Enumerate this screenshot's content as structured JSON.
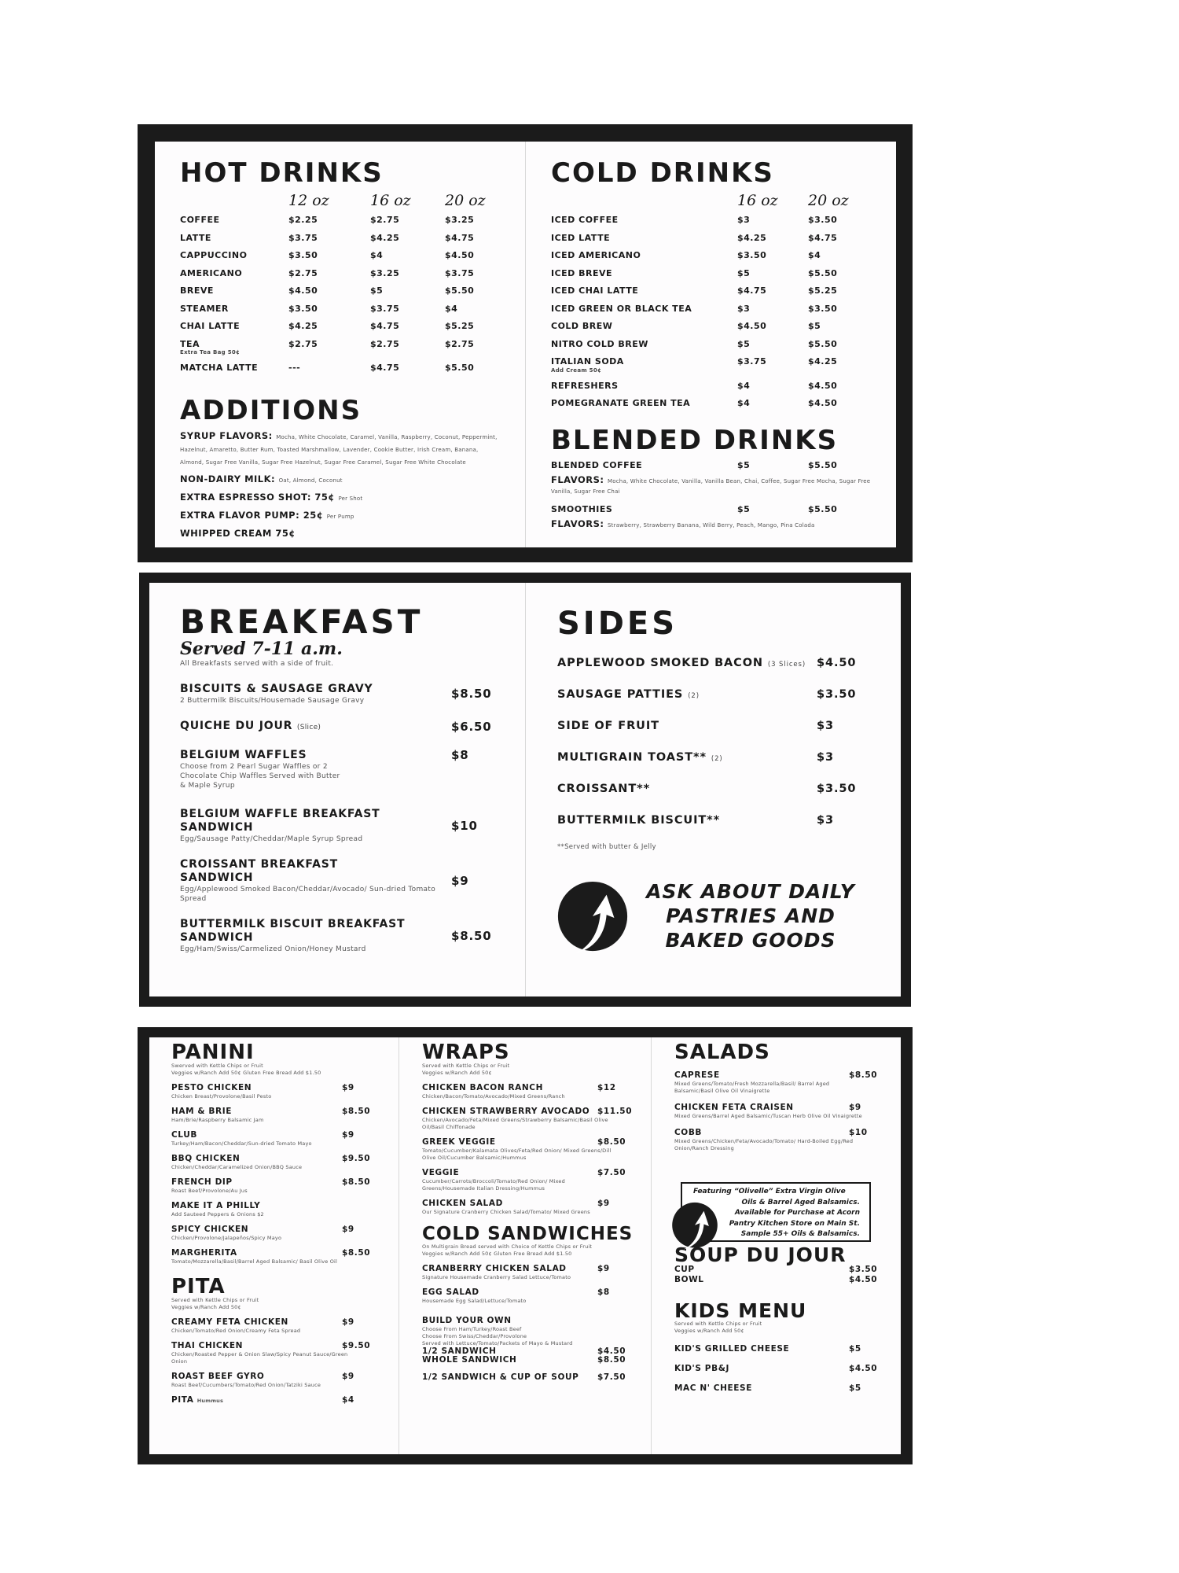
{
  "hot_drinks": {
    "title": "HOT DRINKS",
    "sizes": [
      "12 oz",
      "16 oz",
      "20 oz"
    ],
    "items": [
      {
        "name": "COFFEE",
        "prices": [
          "$2.25",
          "$2.75",
          "$3.25"
        ]
      },
      {
        "name": "LATTE",
        "prices": [
          "$3.75",
          "$4.25",
          "$4.75"
        ]
      },
      {
        "name": "CAPPUCCINO",
        "prices": [
          "$3.50",
          "$4",
          "$4.50"
        ]
      },
      {
        "name": "AMERICANO",
        "prices": [
          "$2.75",
          "$3.25",
          "$3.75"
        ]
      },
      {
        "name": "BREVE",
        "prices": [
          "$4.50",
          "$5",
          "$5.50"
        ]
      },
      {
        "name": "STEAMER",
        "prices": [
          "$3.50",
          "$3.75",
          "$4"
        ]
      },
      {
        "name": "CHAI LATTE",
        "prices": [
          "$4.25",
          "$4.75",
          "$5.25"
        ]
      },
      {
        "name": "TEA",
        "note": "Extra Tea Bag 50¢",
        "prices": [
          "$2.75",
          "$2.75",
          "$2.75"
        ]
      },
      {
        "name": "MATCHA LATTE",
        "prices": [
          "---",
          "$4.75",
          "$5.50"
        ]
      }
    ]
  },
  "additions": {
    "title": "ADDITIONS",
    "items": [
      {
        "label": "SYRUP FLAVORS:",
        "detail": "Mocha, White Chocolate, Caramel, Vanilla, Raspberry, Coconut, Peppermint, Hazelnut, Amaretto, Butter Rum, Toasted Marshmallow, Lavender, Cookie Butter, Irish Cream, Banana, Almond, Sugar Free Vanilla, Sugar Free Hazelnut, Sugar Free Caramel, Sugar Free White Chocolate"
      },
      {
        "label": "NON-DAIRY MILK:",
        "detail": "Oat, Almond, Coconut"
      },
      {
        "label": "EXTRA ESPRESSO SHOT: 75¢",
        "detail": "Per Shot"
      },
      {
        "label": "EXTRA FLAVOR PUMP: 25¢",
        "detail": "Per Pump"
      },
      {
        "label": "WHIPPED CREAM 75¢"
      }
    ]
  },
  "cold_drinks": {
    "title": "COLD DRINKS",
    "sizes": [
      "16 oz",
      "20 oz"
    ],
    "items": [
      {
        "name": "ICED COFFEE",
        "prices": [
          "$3",
          "$3.50"
        ]
      },
      {
        "name": "ICED LATTE",
        "prices": [
          "$4.25",
          "$4.75"
        ]
      },
      {
        "name": "ICED AMERICANO",
        "prices": [
          "$3.50",
          "$4"
        ]
      },
      {
        "name": "ICED BREVE",
        "prices": [
          "$5",
          "$5.50"
        ]
      },
      {
        "name": "ICED CHAI LATTE",
        "prices": [
          "$4.75",
          "$5.25"
        ]
      },
      {
        "name": "ICED GREEN OR BLACK TEA",
        "prices": [
          "$3",
          "$3.50"
        ]
      },
      {
        "name": "COLD BREW",
        "prices": [
          "$4.50",
          "$5"
        ]
      },
      {
        "name": "NITRO COLD BREW",
        "prices": [
          "$5",
          "$5.50"
        ]
      },
      {
        "name": "ITALIAN SODA",
        "note": "Add Cream 50¢",
        "prices": [
          "$3.75",
          "$4.25"
        ]
      },
      {
        "name": "REFRESHERS",
        "prices": [
          "$4",
          "$4.50"
        ]
      },
      {
        "name": "POMEGRANATE GREEN TEA",
        "prices": [
          "$4",
          "$4.50"
        ]
      }
    ]
  },
  "blended_drinks": {
    "title": "BLENDED DRINKS",
    "items": [
      {
        "name": "BLENDED COFFEE",
        "prices": [
          "$5",
          "$5.50"
        ],
        "flavors_label": "FLAVORS:",
        "flavors": "Mocha, White Chocolate, Vanilla, Vanilla Bean, Chai, Coffee, Sugar Free Mocha, Sugar Free Vanilla, Sugar Free Chai"
      },
      {
        "name": "SMOOTHIES",
        "prices": [
          "$5",
          "$5.50"
        ],
        "flavors_label": "FLAVORS:",
        "flavors": "Strawberry, Strawberry Banana, Wild Berry, Peach, Mango, Pina Colada"
      }
    ]
  },
  "breakfast": {
    "title": "BREAKFAST",
    "hours": "Served 7-11 a.m.",
    "note": "All Breakfasts served with a side of fruit.",
    "items": [
      {
        "name": "BISCUITS & SAUSAGE GRAVY",
        "desc": "2 Buttermilk Biscuits/Housemade Sausage Gravy",
        "price": "$8.50"
      },
      {
        "name": "QUICHE DU JOUR",
        "qualifier": "(Slice)",
        "price": "$6.50"
      },
      {
        "name": "BELGIUM WAFFLES",
        "desc": "Choose from 2 Pearl Sugar Waffles or 2 Chocolate Chip Waffles Served with Butter & Maple Syrup",
        "price": "$8",
        "price_top": true
      },
      {
        "name": "BELGIUM WAFFLE BREAKFAST SANDWICH",
        "desc": "Egg/Sausage Patty/Cheddar/Maple Syrup Spread",
        "price": "$10"
      },
      {
        "name": "CROISSANT BREAKFAST SANDWICH",
        "desc": "Egg/Applewood Smoked Bacon/Cheddar/Avocado/ Sun-dried Tomato Spread",
        "price": "$9"
      },
      {
        "name": "BUTTERMILK BISCUIT BREAKFAST SANDWICH",
        "desc": "Egg/Ham/Swiss/Carmelized Onion/Honey Mustard",
        "price": "$8.50"
      }
    ]
  },
  "sides": {
    "title": "SIDES",
    "items": [
      {
        "name": "APPLEWOOD SMOKED BACON",
        "qualifier": "(3 Slices)",
        "price": "$4.50"
      },
      {
        "name": "SAUSAGE PATTIES",
        "qualifier": "(2)",
        "price": "$3.50"
      },
      {
        "name": "SIDE OF FRUIT",
        "price": "$3"
      },
      {
        "name": "MULTIGRAIN TOAST**",
        "qualifier": "(2)",
        "price": "$3"
      },
      {
        "name": "CROISSANT**",
        "price": "$3.50"
      },
      {
        "name": "BUTTERMILK BISCUIT**",
        "price": "$3"
      }
    ],
    "footnote": "**Served with butter & Jelly",
    "promo_lines": [
      "ASK ABOUT DAILY",
      "PASTRIES AND",
      "BAKED GOODS"
    ]
  },
  "panini": {
    "title": "PANINI",
    "subtitle": [
      "Swerved with Kettle Chips or Fruit",
      "Veggies w/Ranch Add 50¢   Gluten Free Bread Add $1.50"
    ],
    "items": [
      {
        "name": "PESTO CHICKEN",
        "desc": "Chicken Breast/Provolone/Basil Pesto",
        "price": "$9"
      },
      {
        "name": "HAM & BRIE",
        "desc": "Ham/Brie/Raspberry Balsamic Jam",
        "price": "$8.50"
      },
      {
        "name": "CLUB",
        "desc": "Turkey/Ham/Bacon/Cheddar/Sun-dried Tomato Mayo",
        "price": "$9"
      },
      {
        "name": "BBQ CHICKEN",
        "desc": "Chicken/Cheddar/Caramelized Onion/BBQ Sauce",
        "price": "$9.50"
      },
      {
        "name": "FRENCH DIP",
        "desc": "Roast Beef/Provolone/Au Jus",
        "price": "$8.50"
      },
      {
        "name": "MAKE IT A PHILLY",
        "desc": "Add Sauteed Peppers & Onions $2"
      },
      {
        "name": "SPICY CHICKEN",
        "desc": "Chicken/Provolone/Jalapeños/Spicy Mayo",
        "price": "$9"
      },
      {
        "name": "MARGHERITA",
        "desc": "Tomato/Mozzarella/Basil/Barrel Aged Balsamic/ Basil Olive Oil",
        "price": "$8.50"
      }
    ]
  },
  "pita": {
    "title": "PITA",
    "subtitle": [
      "Served with Kettle Chips or Fruit",
      "Veggies w/Ranch Add 50¢"
    ],
    "items": [
      {
        "name": "CREAMY FETA CHICKEN",
        "desc": "Chicken/Tomato/Red Onion/Creamy Feta Spread",
        "price": "$9"
      },
      {
        "name": "THAI CHICKEN",
        "desc": "Chicken/Roasted Pepper & Onion Slaw/Spicy Peanut Sauce/Green Onion",
        "price": "$9.50"
      },
      {
        "name": "ROAST BEEF GYRO",
        "desc": "Roast Beef/Cucumbers/Tomato/Red Onion/Tatziki Sauce",
        "price": "$9"
      },
      {
        "name": "PITA",
        "qualifier": "Hummus",
        "price": "$4"
      }
    ]
  },
  "wraps": {
    "title": "WRAPS",
    "subtitle": [
      "Served with Kettle Chips or Fruit",
      "Veggies w/Ranch Add 50¢"
    ],
    "items": [
      {
        "name": "CHICKEN BACON RANCH",
        "desc": "Chicken/Bacon/Tomato/Avocado/Mixed Greens/Ranch",
        "price": "$12"
      },
      {
        "name": "CHICKEN STRAWBERRY AVOCADO",
        "desc": "Chicken/Avocado/Feta/Mixed Greens/Strawberry Balsamic/Basil Olive Oil/Basil Chiffonade",
        "price": "$11.50"
      },
      {
        "name": "GREEK VEGGIE",
        "desc": "Tomato/Cucumber/Kalamata Olives/Feta/Red Onion/ Mixed Greens/Dill Olive Oil/Cucumber Balsamic/Hummus",
        "price": "$8.50"
      },
      {
        "name": "VEGGIE",
        "desc": "Cucumber/Carrots/Broccoli/Tomato/Red Onion/ Mixed Greens/Housemade Italian Dressing/Hummus",
        "price": "$7.50"
      },
      {
        "name": "CHICKEN SALAD",
        "desc": "Our Signature Cranberry Chicken Salad/Tomato/ Mixed Greens",
        "price": "$9"
      }
    ]
  },
  "cold_sandwiches": {
    "title": "COLD SANDWICHES",
    "subtitle": [
      "On Multigrain Bread served with Choice of Kettle Chips or Fruit",
      "Veggies w/Ranch Add 50¢   Gluten Free Bread Add $1.50"
    ],
    "items": [
      {
        "name": "CRANBERRY CHICKEN SALAD",
        "desc": "Signature Housemade Cranberry Salad Lettuce/Tomato",
        "price": "$9"
      },
      {
        "name": "EGG SALAD",
        "desc": "Housemade Egg Salad/Lettuce/Tomato",
        "price": "$8"
      }
    ],
    "build": {
      "name": "BUILD YOUR OWN",
      "desc": [
        "Choose From Ham/Turkey/Roast Beef",
        "Choose From Swiss/Cheddar/Provolone",
        "Served with Lettuce/Tomato/Packets of Mayo & Mustard"
      ],
      "options": [
        {
          "name": "1/2 SANDWICH",
          "price": "$4.50"
        },
        {
          "name": "WHOLE SANDWICH",
          "price": "$8.50"
        }
      ]
    },
    "combo": {
      "name": "1/2 SANDWICH & CUP OF SOUP",
      "price": "$7.50"
    }
  },
  "salads": {
    "title": "SALADS",
    "items": [
      {
        "name": "CAPRESE",
        "desc": "Mixed Greens/Tomato/Fresh Mozzarella/Basil/ Barrel Aged Balsamic/Basil Olive Oil Vinaigrette",
        "price": "$8.50"
      },
      {
        "name": "CHICKEN FETA CRAISEN",
        "desc": "Mixed Greens/Barrel Aged Balsamic/Tuscan Herb Olive Oil Vinaigrette",
        "price": "$9"
      },
      {
        "name": "COBB",
        "desc": "Mixed Greens/Chicken/Feta/Avocado/Tomato/ Hard-Boiled Egg/Red Onion/Ranch Dressing",
        "price": "$10"
      }
    ]
  },
  "olivelle_promo": {
    "lines": [
      "Featuring “Olivelle” Extra Virgin Olive",
      "Oils & Barrel Aged Balsamics.",
      "Available for Purchase at Acorn",
      "Pantry Kitchen Store on Main St.",
      "Sample 55+ Oils & Balsamics."
    ]
  },
  "soup": {
    "title": "SOUP DU JOUR",
    "items": [
      {
        "name": "CUP",
        "price": "$3.50"
      },
      {
        "name": "BOWL",
        "price": "$4.50"
      }
    ]
  },
  "kids": {
    "title": "KIDS MENU",
    "subtitle": [
      "Served with Kettle Chips or Fruit",
      "Veggies w/Ranch Add 50¢"
    ],
    "items": [
      {
        "name": "KID'S GRILLED CHEESE",
        "price": "$5"
      },
      {
        "name": "KID'S PB&J",
        "price": "$4.50"
      },
      {
        "name": "MAC N' CHEESE",
        "price": "$5"
      }
    ]
  },
  "icons": {
    "logo": "acorn-swoosh-logo-icon"
  },
  "colors": {
    "border": "#1b1b1b",
    "paper": "#fdfcfd",
    "text": "#1a1a1a"
  }
}
